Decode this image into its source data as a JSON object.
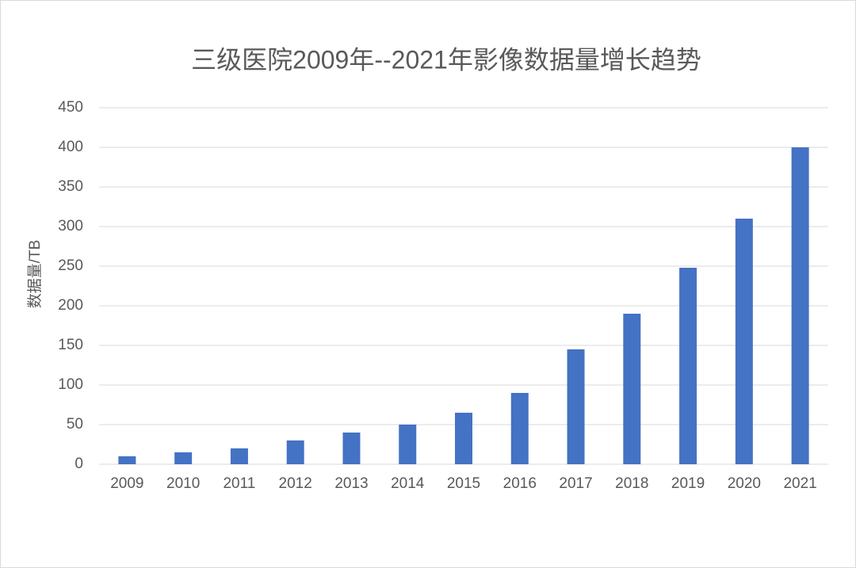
{
  "chart_data": {
    "type": "bar",
    "title": "三级医院2009年--2021年影像数据量增长趋势",
    "y_label": "数据量/TB",
    "categories": [
      "2009",
      "2010",
      "2011",
      "2012",
      "2013",
      "2014",
      "2015",
      "2016",
      "2017",
      "2018",
      "2019",
      "2020",
      "2021"
    ],
    "values": [
      10,
      15,
      20,
      30,
      40,
      50,
      65,
      90,
      145,
      190,
      248,
      310,
      400
    ],
    "color": "#4472c4",
    "ylim": [
      0,
      450
    ],
    "yticks": [
      0,
      50,
      100,
      150,
      200,
      250,
      300,
      350,
      400,
      450
    ],
    "grid": true
  }
}
